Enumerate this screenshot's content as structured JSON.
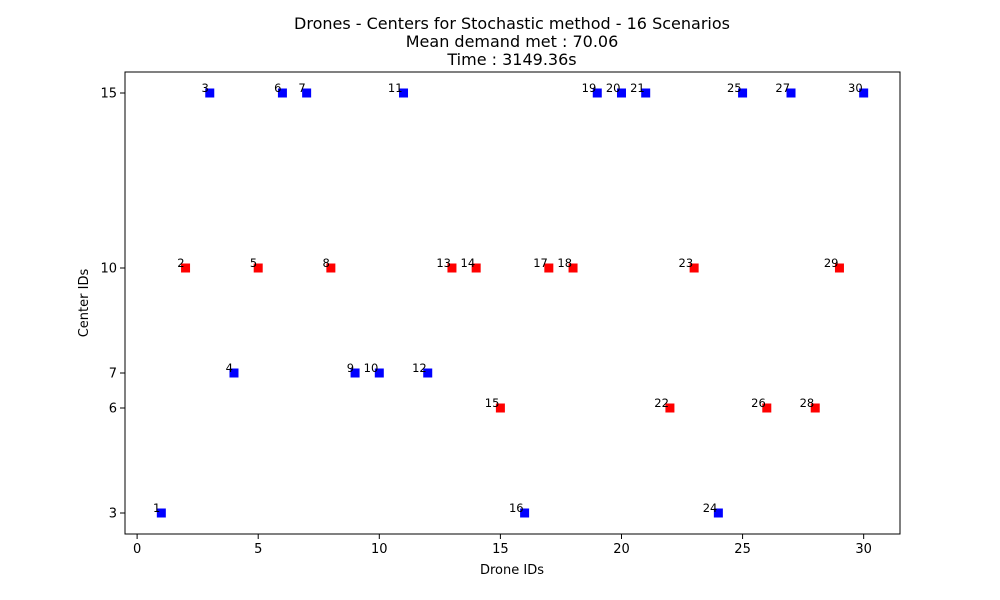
{
  "chart_data": {
    "type": "scatter",
    "title_lines": [
      "Drones - Centers for Stochastic method - 16 Scenarios",
      "Mean demand met : 70.06",
      "Time : 3149.36s"
    ],
    "xlabel": "Drone IDs",
    "ylabel": "Center IDs",
    "xlim": [
      -0.5,
      31.5
    ],
    "ylim": [
      2.4,
      15.6
    ],
    "xticks": [
      0,
      5,
      10,
      15,
      20,
      25,
      30
    ],
    "yticks": [
      3,
      6,
      7,
      10,
      15
    ],
    "grid": false,
    "marker": "square",
    "colors": {
      "blue": "#0000ff",
      "red": "#ff0000"
    },
    "points": [
      {
        "x": 1,
        "y": 3,
        "label": "1",
        "color": "blue"
      },
      {
        "x": 2,
        "y": 10,
        "label": "2",
        "color": "red"
      },
      {
        "x": 3,
        "y": 15,
        "label": "3",
        "color": "blue"
      },
      {
        "x": 4,
        "y": 7,
        "label": "4",
        "color": "blue"
      },
      {
        "x": 5,
        "y": 10,
        "label": "5",
        "color": "red"
      },
      {
        "x": 6,
        "y": 15,
        "label": "6",
        "color": "blue"
      },
      {
        "x": 7,
        "y": 15,
        "label": "7",
        "color": "blue"
      },
      {
        "x": 8,
        "y": 10,
        "label": "8",
        "color": "red"
      },
      {
        "x": 9,
        "y": 7,
        "label": "9",
        "color": "blue"
      },
      {
        "x": 10,
        "y": 7,
        "label": "10",
        "color": "blue"
      },
      {
        "x": 11,
        "y": 15,
        "label": "11",
        "color": "blue"
      },
      {
        "x": 12,
        "y": 7,
        "label": "12",
        "color": "blue"
      },
      {
        "x": 13,
        "y": 10,
        "label": "13",
        "color": "red"
      },
      {
        "x": 14,
        "y": 10,
        "label": "14",
        "color": "red"
      },
      {
        "x": 15,
        "y": 6,
        "label": "15",
        "color": "red"
      },
      {
        "x": 16,
        "y": 3,
        "label": "16",
        "color": "blue"
      },
      {
        "x": 17,
        "y": 10,
        "label": "17",
        "color": "red"
      },
      {
        "x": 18,
        "y": 10,
        "label": "18",
        "color": "red"
      },
      {
        "x": 19,
        "y": 15,
        "label": "19",
        "color": "blue"
      },
      {
        "x": 20,
        "y": 15,
        "label": "20",
        "color": "blue"
      },
      {
        "x": 21,
        "y": 15,
        "label": "21",
        "color": "blue"
      },
      {
        "x": 22,
        "y": 6,
        "label": "22",
        "color": "red"
      },
      {
        "x": 23,
        "y": 10,
        "label": "23",
        "color": "red"
      },
      {
        "x": 24,
        "y": 3,
        "label": "24",
        "color": "blue"
      },
      {
        "x": 25,
        "y": 15,
        "label": "25",
        "color": "blue"
      },
      {
        "x": 26,
        "y": 6,
        "label": "26",
        "color": "red"
      },
      {
        "x": 27,
        "y": 15,
        "label": "27",
        "color": "blue"
      },
      {
        "x": 28,
        "y": 6,
        "label": "28",
        "color": "red"
      },
      {
        "x": 29,
        "y": 10,
        "label": "29",
        "color": "red"
      },
      {
        "x": 30,
        "y": 15,
        "label": "30",
        "color": "blue"
      }
    ]
  }
}
